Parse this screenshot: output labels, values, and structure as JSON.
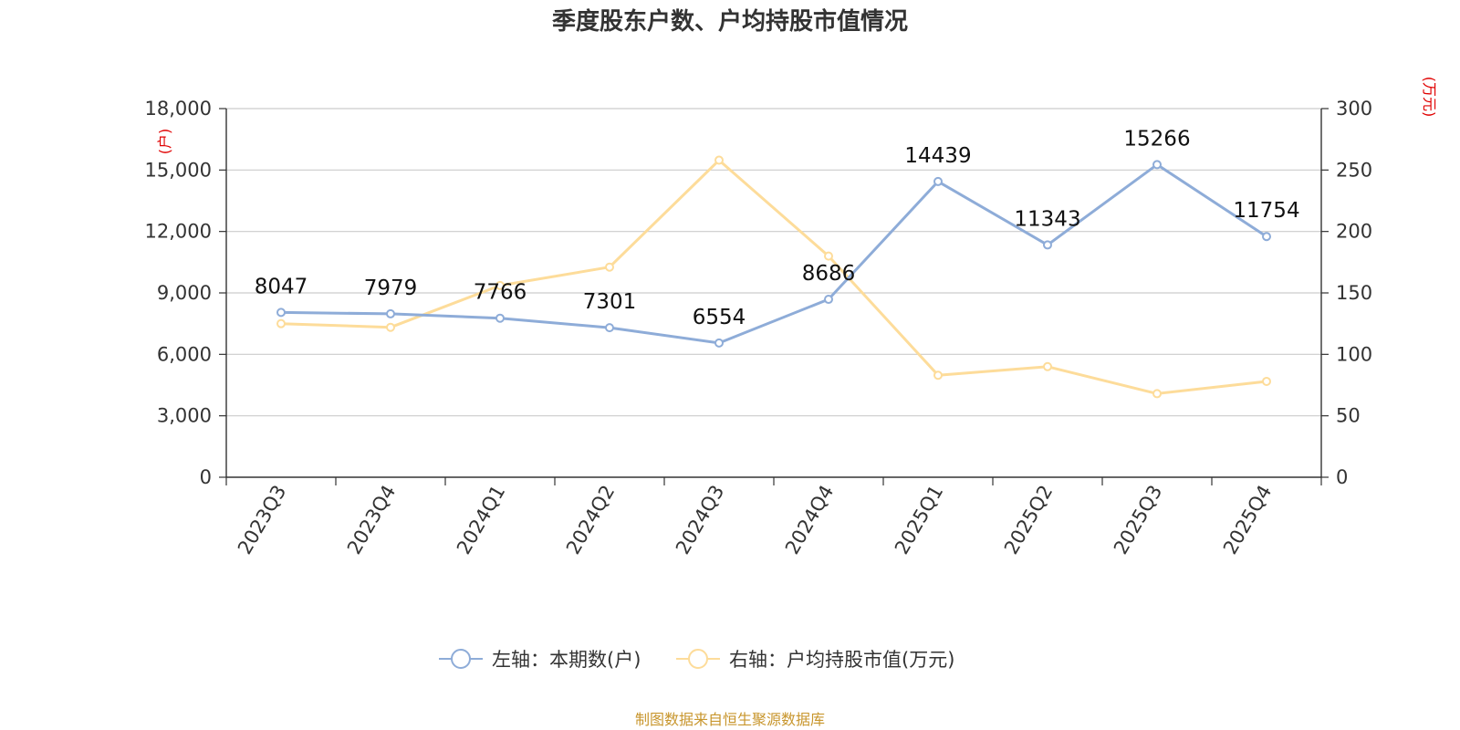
{
  "chart_data": {
    "type": "line",
    "title": "季度股东户数、户均持股市值情况",
    "categories": [
      "2023Q3",
      "2023Q4",
      "2024Q1",
      "2024Q2",
      "2024Q3",
      "2024Q4",
      "2025Q1",
      "2025Q2",
      "2025Q3",
      "2025Q4"
    ],
    "left_axis": {
      "unit": "(户)",
      "ylim": [
        0,
        18000
      ],
      "ticks": [
        0,
        3000,
        6000,
        9000,
        12000,
        15000,
        18000
      ],
      "tick_labels": [
        "0",
        "3,000",
        "6,000",
        "9,000",
        "12,000",
        "15,000",
        "18,000"
      ]
    },
    "right_axis": {
      "unit": "(万元)",
      "ylim": [
        0,
        300
      ],
      "ticks": [
        0,
        50,
        100,
        150,
        200,
        250,
        300
      ],
      "tick_labels": [
        "0",
        "50",
        "100",
        "150",
        "200",
        "250",
        "300"
      ]
    },
    "series": [
      {
        "name": "左轴：本期数(户)",
        "axis": "left",
        "color": "#8eacd8",
        "values": [
          8047,
          7979,
          7766,
          7301,
          6554,
          8686,
          14439,
          11343,
          15266,
          11754
        ],
        "labels": [
          "8047",
          "7979",
          "7766",
          "7301",
          "6554",
          "8686",
          "14439",
          "11343",
          "15266",
          "11754"
        ]
      },
      {
        "name": "右轴：户均持股市值(万元)",
        "axis": "right",
        "color": "#fddc9a",
        "values": [
          125,
          122,
          156,
          171,
          258,
          180,
          83,
          90,
          68,
          78
        ]
      }
    ],
    "grid": true,
    "legend_position": "bottom"
  },
  "footer": {
    "source": "制图数据来自恒生聚源数据库"
  }
}
